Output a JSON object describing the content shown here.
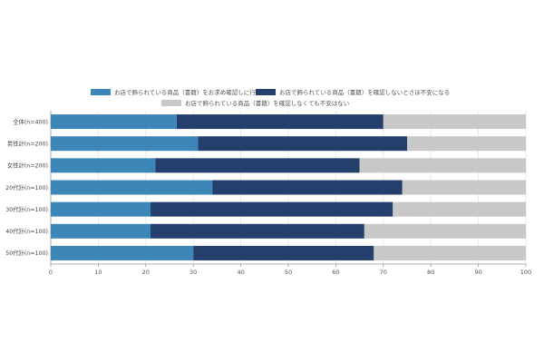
{
  "chart_data": {
    "type": "bar",
    "stacked": true,
    "orientation": "horizontal",
    "categories": [
      "全体(n=400)",
      "男性計(n=200)",
      "女性計(n=200)",
      "20代計(n=100)",
      "30代計(n=100)",
      "40代計(n=100)",
      "50代計(n=100)"
    ],
    "series": [
      {
        "name": "お店で飾られている商品（書籍）をお求め確認しに行く",
        "color": "#3d87b8",
        "values": [
          26.5,
          31,
          22,
          34,
          21,
          21,
          30
        ]
      },
      {
        "name": "お店で飾られている商品（書籍）を確認しないとさほ不安になる",
        "color": "#243f6b",
        "values": [
          43.5,
          44,
          43,
          40,
          51,
          45,
          38
        ]
      },
      {
        "name": "お店で飾られている商品（書籍）を確認しなくても不安はない",
        "color": "#c8c8c8",
        "values": [
          30,
          25,
          35,
          26,
          28,
          34,
          32
        ]
      }
    ],
    "xlim": [
      0,
      100
    ],
    "xticks": [
      "0",
      "10",
      "20",
      "30",
      "40",
      "50",
      "60",
      "70",
      "80",
      "90",
      "100"
    ],
    "legend_position": "top",
    "grid": true
  }
}
